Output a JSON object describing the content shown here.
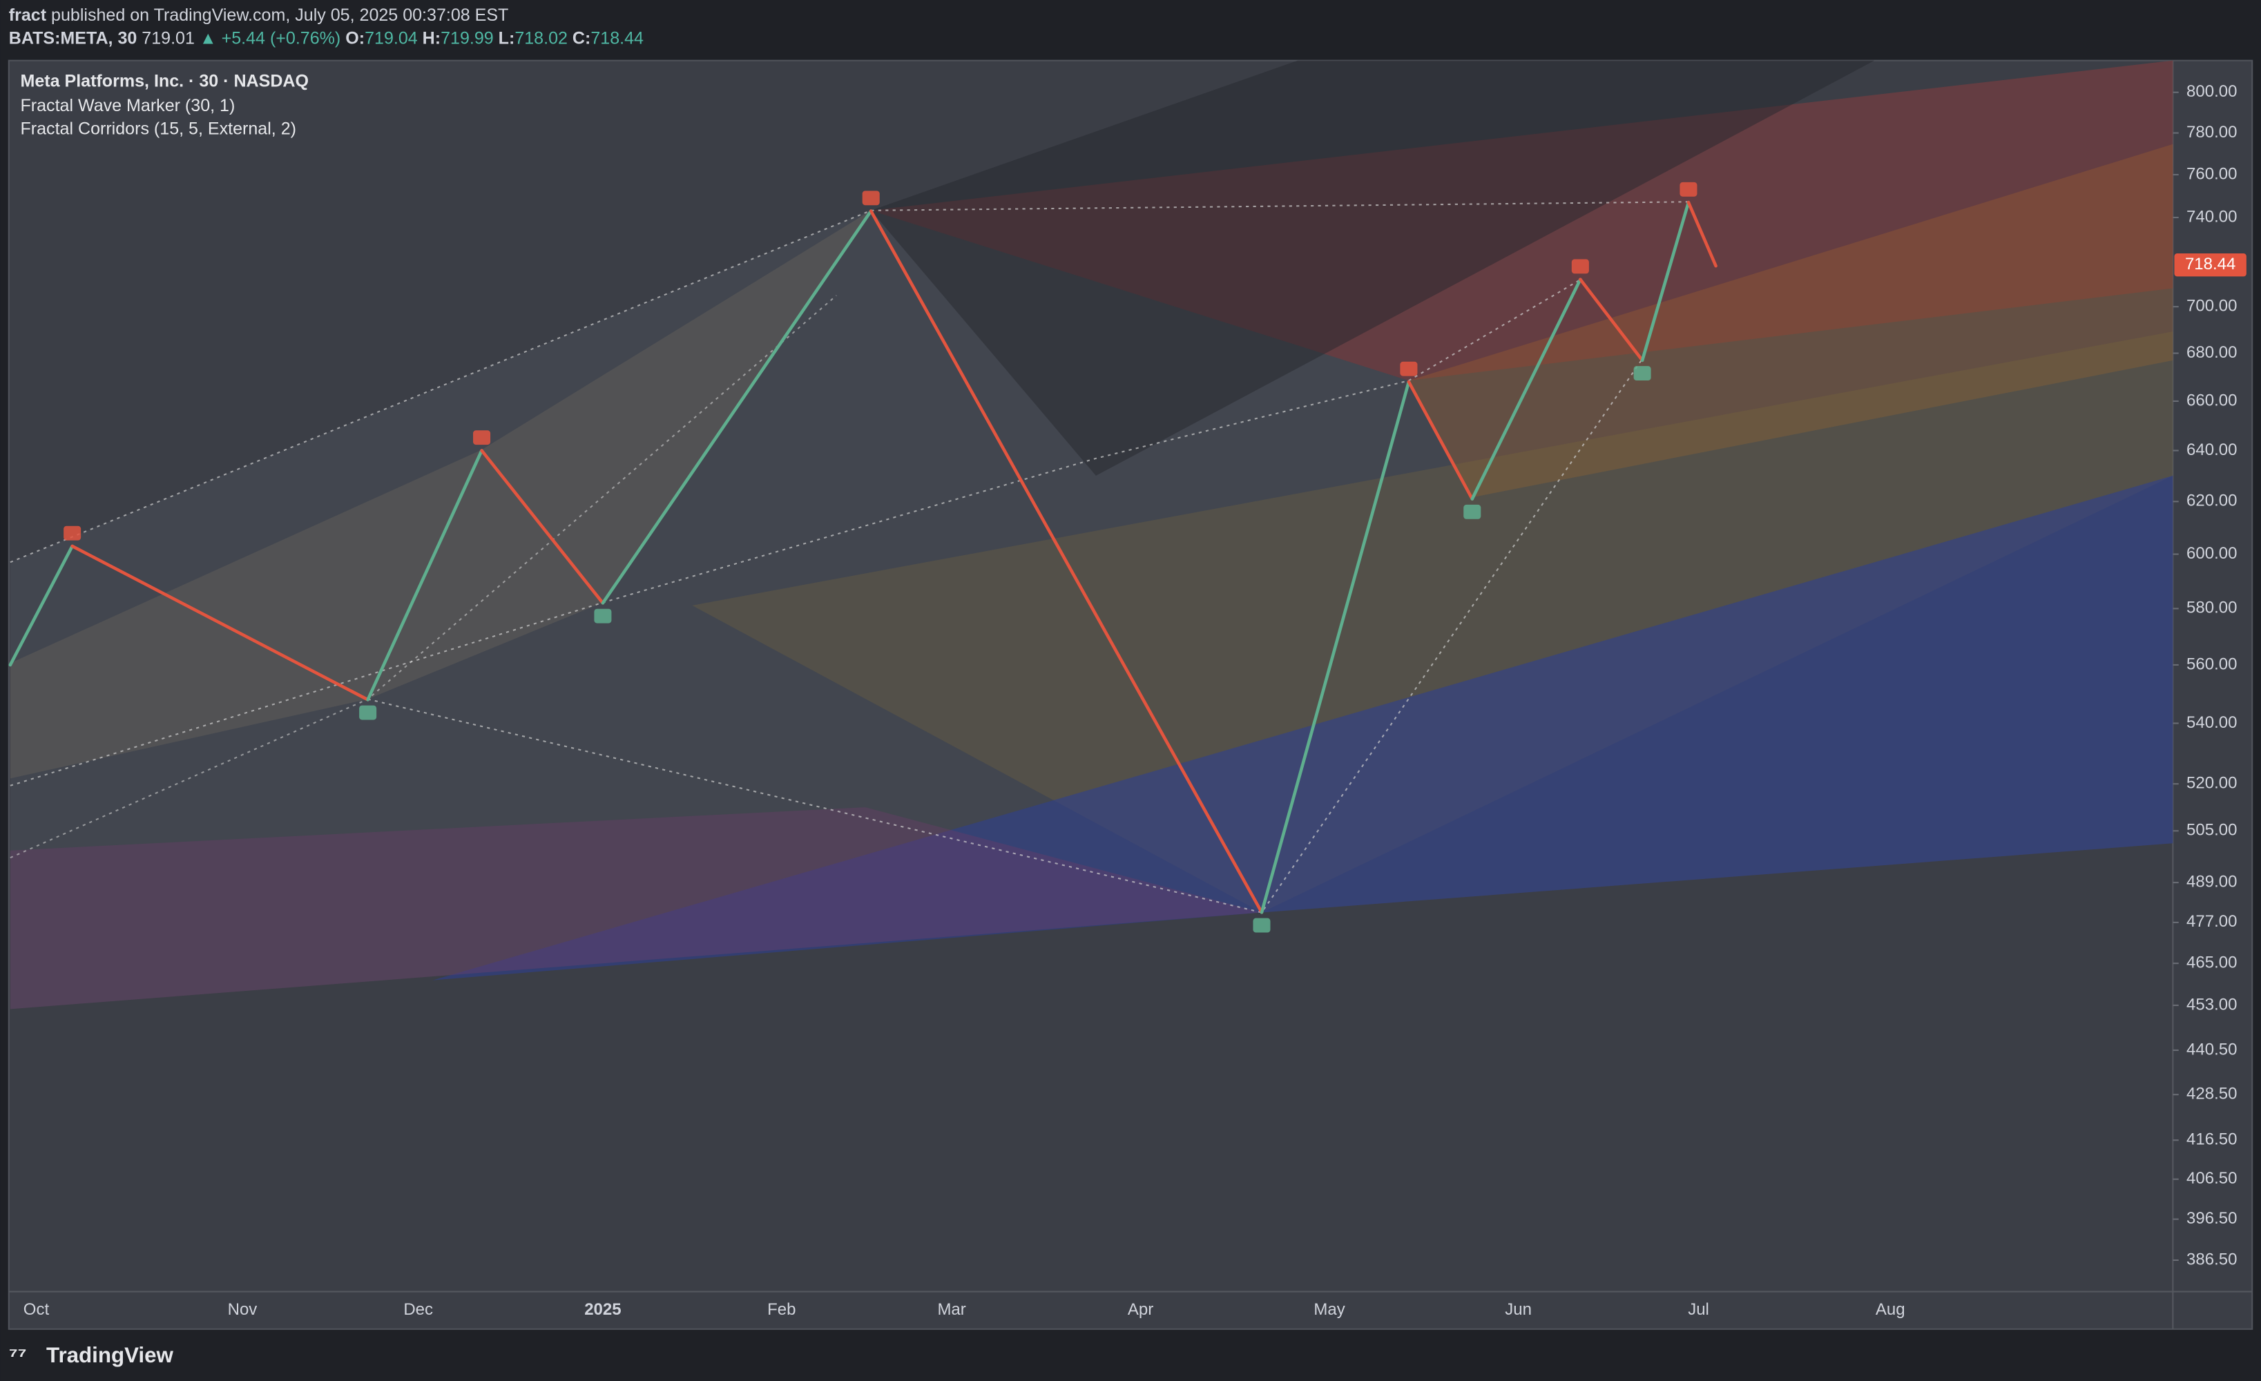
{
  "header": {
    "author": "fract",
    "published": "published on TradingView.com, July 05, 2025 00:37:08 EST",
    "symbol": "BATS:META, 30",
    "price": "719.01",
    "change": "▲ +5.44 (+0.76%)",
    "open_label": "O:",
    "open": "719.04",
    "high_label": "H:",
    "high": "719.99",
    "low_label": "L:",
    "low": "718.02",
    "close_label": "C:",
    "close": "718.44"
  },
  "legend": {
    "title": "Meta Platforms, Inc. · 30 · NASDAQ",
    "indicators": [
      "Fractal Wave Marker (30, 1)",
      "Fractal Corridors (15, 5, External, 2)"
    ]
  },
  "branding": "TradingView",
  "chart_data": {
    "type": "line",
    "categories": [
      null,
      null,
      null,
      null,
      null,
      null,
      null,
      null,
      null,
      null,
      null,
      null,
      null
    ],
    "values": [
      560,
      603,
      548,
      640,
      582,
      743,
      480,
      668,
      621,
      712,
      677,
      747,
      718
    ],
    "up_color": "#5fae8e",
    "down_color": "#e3553f",
    "log_scale": true,
    "ylim": [
      379,
      816
    ],
    "yticks": [
      {
        "value": 800,
        "label": "800.00"
      },
      {
        "value": 780,
        "label": "780.00"
      },
      {
        "value": 760,
        "label": "760.00"
      },
      {
        "value": 740,
        "label": "740.00"
      },
      {
        "value": 700,
        "label": "700.00"
      },
      {
        "value": 680,
        "label": "680.00"
      },
      {
        "value": 660,
        "label": "660.00"
      },
      {
        "value": 640,
        "label": "640.00"
      },
      {
        "value": 620,
        "label": "620.00"
      },
      {
        "value": 600,
        "label": "600.00"
      },
      {
        "value": 580,
        "label": "580.00"
      },
      {
        "value": 560,
        "label": "560.00"
      },
      {
        "value": 540,
        "label": "540.00"
      },
      {
        "value": 520,
        "label": "520.00"
      },
      {
        "value": 505,
        "label": "505.00"
      },
      {
        "value": 489,
        "label": "489.00"
      },
      {
        "value": 477,
        "label": "477.00"
      },
      {
        "value": 465,
        "label": "465.00"
      },
      {
        "value": 453,
        "label": "453.00"
      },
      {
        "value": 440.5,
        "label": "440.50"
      },
      {
        "value": 428.5,
        "label": "428.50"
      },
      {
        "value": 416.5,
        "label": "416.50"
      },
      {
        "value": 406.5,
        "label": "406.50"
      },
      {
        "value": 396.5,
        "label": "396.50"
      },
      {
        "value": 386.5,
        "label": "386.50"
      }
    ],
    "xticks": [
      "Oct",
      "Nov",
      "Dec",
      "2025",
      "Feb",
      "Mar",
      "Apr",
      "May",
      "Jun",
      "Jul",
      "Aug"
    ],
    "last_price": 718.44,
    "last_price_color": "#e3553f"
  }
}
